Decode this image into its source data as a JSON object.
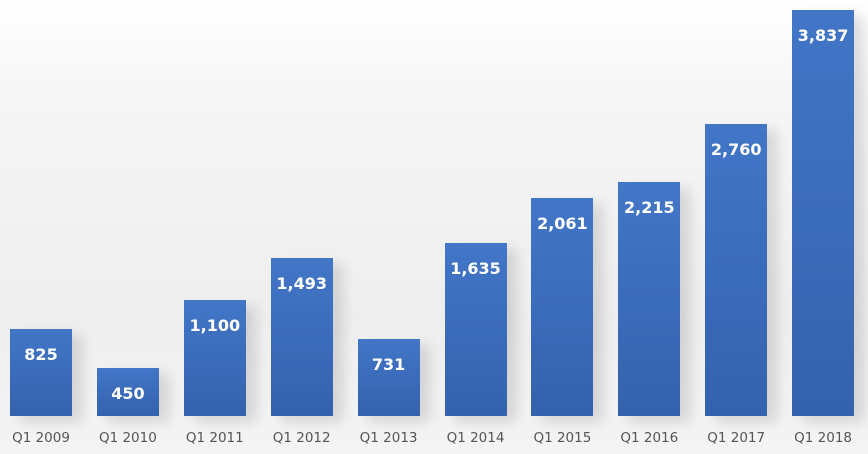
{
  "chart_data": {
    "type": "bar",
    "categories": [
      "Q1 2009",
      "Q1 2010",
      "Q1 2011",
      "Q1 2012",
      "Q1 2013",
      "Q1 2014",
      "Q1 2015",
      "Q1 2016",
      "Q1 2017",
      "Q1 2018"
    ],
    "values": [
      825,
      450,
      1100,
      1493,
      731,
      1635,
      2061,
      2215,
      2760,
      3837
    ],
    "value_labels": [
      "825",
      "450",
      "1,100",
      "1,493",
      "731",
      "1,635",
      "2,061",
      "2,215",
      "2,760",
      "3,837"
    ],
    "title": "",
    "xlabel": "",
    "ylabel": "",
    "ylim": [
      0,
      3837
    ],
    "grid": false,
    "bar_color": "#3b6cbb"
  }
}
